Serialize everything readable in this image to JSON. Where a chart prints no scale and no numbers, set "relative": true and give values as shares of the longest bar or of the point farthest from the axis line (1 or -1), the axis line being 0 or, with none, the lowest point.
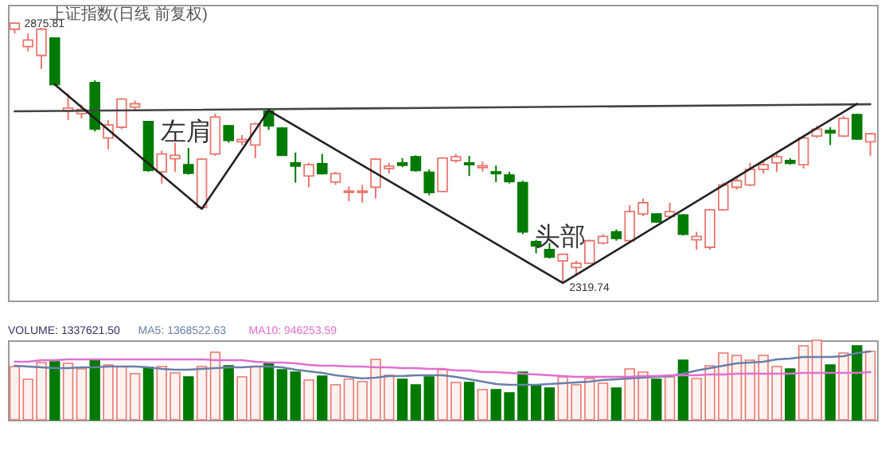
{
  "chart_data": [
    {
      "type": "candlestick",
      "title": "上证指数(日线 前复权)",
      "tick_labels": false,
      "categories": [
        null,
        null,
        null,
        null,
        null,
        null,
        null,
        null,
        null,
        null,
        null,
        null,
        null,
        null,
        null,
        null,
        null,
        null,
        null,
        null,
        null,
        null,
        null,
        null,
        null,
        null,
        null,
        null,
        null,
        null,
        null,
        null,
        null,
        null,
        null,
        null,
        null,
        null,
        null,
        null,
        null,
        null,
        null,
        null,
        null,
        null,
        null,
        null,
        null,
        null,
        null,
        null,
        null,
        null,
        null,
        null,
        null,
        null,
        null,
        null,
        null,
        null,
        null,
        null,
        null
      ],
      "ohlc": [
        [
          2861,
          2875.81,
          2852,
          2874
        ],
        [
          2824,
          2852,
          2814,
          2838
        ],
        [
          2805,
          2864,
          2776,
          2861
        ],
        [
          2842,
          2843,
          2741,
          2743
        ],
        [
          2686,
          2724,
          2667,
          2693
        ],
        [
          2681,
          2700,
          2671,
          2690
        ],
        [
          2747,
          2752,
          2643,
          2648
        ],
        [
          2629,
          2667,
          2605,
          2657
        ],
        [
          2652,
          2714,
          2648,
          2712
        ],
        [
          2695,
          2709,
          2686,
          2702
        ],
        [
          2664,
          2665,
          2557,
          2560
        ],
        [
          2557,
          2602,
          2532,
          2595
        ],
        [
          2585,
          2619,
          2557,
          2592
        ],
        [
          2572,
          2608,
          2551,
          2554
        ],
        [
          2481,
          2586,
          2478,
          2584
        ],
        [
          2595,
          2681,
          2591,
          2674
        ],
        [
          2655,
          2657,
          2619,
          2624
        ],
        [
          2621,
          2635,
          2614,
          2626
        ],
        [
          2614,
          2662,
          2586,
          2659
        ],
        [
          2686,
          2688,
          2646,
          2655
        ],
        [
          2650,
          2652,
          2591,
          2592
        ],
        [
          2576,
          2598,
          2534,
          2569
        ],
        [
          2548,
          2576,
          2524,
          2572
        ],
        [
          2574,
          2595,
          2551,
          2553
        ],
        [
          2535,
          2557,
          2529,
          2553
        ],
        [
          2513,
          2526,
          2494,
          2516
        ],
        [
          2513,
          2529,
          2491,
          2516
        ],
        [
          2524,
          2586,
          2500,
          2584
        ],
        [
          2564,
          2576,
          2553,
          2569
        ],
        [
          2576,
          2586,
          2567,
          2571
        ],
        [
          2589,
          2592,
          2557,
          2560
        ],
        [
          2556,
          2562,
          2507,
          2513
        ],
        [
          2515,
          2588,
          2513,
          2586
        ],
        [
          2581,
          2595,
          2576,
          2589
        ],
        [
          2576,
          2591,
          2548,
          2572
        ],
        [
          2566,
          2579,
          2557,
          2570
        ],
        [
          2557,
          2570,
          2535,
          2553
        ],
        [
          2550,
          2557,
          2532,
          2536
        ],
        [
          2534,
          2538,
          2424,
          2429
        ],
        [
          2408,
          2412,
          2383,
          2399
        ],
        [
          2391,
          2405,
          2372,
          2375
        ],
        [
          2367,
          2383,
          2319.74,
          2381
        ],
        [
          2353,
          2367,
          2339,
          2362
        ],
        [
          2362,
          2412,
          2360,
          2410
        ],
        [
          2405,
          2424,
          2402,
          2419
        ],
        [
          2429,
          2434,
          2410,
          2415
        ],
        [
          2410,
          2486,
          2408,
          2472
        ],
        [
          2467,
          2500,
          2462,
          2491
        ],
        [
          2467,
          2469,
          2448,
          2450
        ],
        [
          2462,
          2491,
          2457,
          2472
        ],
        [
          2465,
          2467,
          2421,
          2424
        ],
        [
          2412,
          2429,
          2391,
          2419
        ],
        [
          2396,
          2478,
          2391,
          2476
        ],
        [
          2476,
          2534,
          2475,
          2529
        ],
        [
          2524,
          2548,
          2519,
          2538
        ],
        [
          2529,
          2576,
          2526,
          2562
        ],
        [
          2562,
          2581,
          2553,
          2572
        ],
        [
          2576,
          2595,
          2557,
          2589
        ],
        [
          2581,
          2586,
          2572,
          2575
        ],
        [
          2572,
          2633,
          2564,
          2629
        ],
        [
          2633,
          2655,
          2629,
          2648
        ],
        [
          2645,
          2652,
          2614,
          2640
        ],
        [
          2633,
          2676,
          2631,
          2671
        ],
        [
          2679,
          2681,
          2625,
          2627
        ],
        [
          2621,
          2640,
          2591,
          2638
        ]
      ],
      "colors": [
        "#e8776f",
        "#e8776f",
        "#e8776f",
        "#007a00",
        "#e8776f",
        "#e8776f",
        "#007a00",
        "#e8776f",
        "#e8776f",
        "#e8776f",
        "#007a00",
        "#e8776f",
        "#e8776f",
        "#007a00",
        "#e8776f",
        "#e8776f",
        "#007a00",
        "#e8776f",
        "#e8776f",
        "#007a00",
        "#007a00",
        "#007a00",
        "#e8776f",
        "#007a00",
        "#e8776f",
        "#e8776f",
        "#e8776f",
        "#e8776f",
        "#e8776f",
        "#007a00",
        "#007a00",
        "#007a00",
        "#e8776f",
        "#e8776f",
        "#007a00",
        "#e8776f",
        "#007a00",
        "#007a00",
        "#007a00",
        "#007a00",
        "#007a00",
        "#e8776f",
        "#e8776f",
        "#e8776f",
        "#e8776f",
        "#007a00",
        "#e8776f",
        "#e8776f",
        "#007a00",
        "#e8776f",
        "#007a00",
        "#e8776f",
        "#e8776f",
        "#e8776f",
        "#e8776f",
        "#e8776f",
        "#e8776f",
        "#e8776f",
        "#007a00",
        "#e8776f",
        "#e8776f",
        "#007a00",
        "#e8776f",
        "#007a00",
        "#e8776f"
      ],
      "series": [
        {
          "type": "line",
          "color": "#444444",
          "values": [
            2686,
            null,
            null,
            null,
            null,
            null,
            null,
            null,
            null,
            null,
            null,
            null,
            null,
            null,
            null,
            null,
            null,
            null,
            null,
            null,
            null,
            null,
            null,
            null,
            null,
            null,
            null,
            null,
            null,
            null,
            null,
            null,
            null,
            null,
            null,
            null,
            null,
            null,
            null,
            null,
            null,
            null,
            null,
            null,
            null,
            null,
            null,
            null,
            null,
            null,
            null,
            null,
            null,
            null,
            null,
            null,
            null,
            null,
            null,
            null,
            null,
            null,
            null,
            null,
            2701
          ]
        },
        {
          "type": "line",
          "color": "#222222",
          "values": [
            null,
            null,
            null,
            2743,
            null,
            null,
            null,
            null,
            null,
            null,
            null,
            null,
            null,
            null,
            2478,
            null,
            null,
            null,
            null,
            2688,
            null,
            null,
            null,
            null,
            null,
            null,
            null,
            null,
            null,
            null,
            null,
            null,
            null,
            null,
            null,
            null,
            null,
            null,
            null,
            null,
            null,
            2320,
            null,
            null,
            null,
            null,
            null,
            null,
            null,
            null,
            null,
            null,
            null,
            null,
            null,
            null,
            null,
            null,
            null,
            null,
            null,
            null,
            null,
            2702,
            null
          ]
        }
      ],
      "annotations": [
        "2875.81",
        "2319.74",
        "左肩",
        "头部"
      ]
    },
    {
      "type": "bar",
      "relative": true,
      "tick_labels": false,
      "categories": [
        null,
        null,
        null,
        null,
        null,
        null,
        null,
        null,
        null,
        null,
        null,
        null,
        null,
        null,
        null,
        null,
        null,
        null,
        null,
        null,
        null,
        null,
        null,
        null,
        null,
        null,
        null,
        null,
        null,
        null,
        null,
        null,
        null,
        null,
        null,
        null,
        null,
        null,
        null,
        null,
        null,
        null,
        null,
        null,
        null,
        null,
        null,
        null,
        null,
        null,
        null,
        null,
        null,
        null,
        null,
        null,
        null,
        null,
        null,
        null,
        null,
        null,
        null,
        null,
        null
      ],
      "series": [
        {
          "type": "bar",
          "colors": [
            "#e8776f",
            "#e8776f",
            "#e8776f",
            "#007a00",
            "#e8776f",
            "#e8776f",
            "#007a00",
            "#e8776f",
            "#e8776f",
            "#e8776f",
            "#007a00",
            "#e8776f",
            "#e8776f",
            "#007a00",
            "#e8776f",
            "#e8776f",
            "#007a00",
            "#e8776f",
            "#e8776f",
            "#007a00",
            "#007a00",
            "#007a00",
            "#e8776f",
            "#007a00",
            "#e8776f",
            "#e8776f",
            "#e8776f",
            "#e8776f",
            "#e8776f",
            "#007a00",
            "#007a00",
            "#007a00",
            "#e8776f",
            "#e8776f",
            "#007a00",
            "#e8776f",
            "#007a00",
            "#007a00",
            "#007a00",
            "#007a00",
            "#007a00",
            "#e8776f",
            "#e8776f",
            "#e8776f",
            "#e8776f",
            "#007a00",
            "#e8776f",
            "#e8776f",
            "#007a00",
            "#e8776f",
            "#007a00",
            "#e8776f",
            "#e8776f",
            "#e8776f",
            "#e8776f",
            "#e8776f",
            "#e8776f",
            "#e8776f",
            "#007a00",
            "#e8776f",
            "#e8776f",
            "#007a00",
            "#e8776f",
            "#007a00",
            "#e8776f"
          ],
          "values": [
            0.67,
            0.51,
            0.72,
            0.73,
            0.71,
            0.64,
            0.75,
            0.69,
            0.67,
            0.58,
            0.66,
            0.67,
            0.59,
            0.54,
            0.67,
            0.85,
            0.68,
            0.54,
            0.67,
            0.71,
            0.63,
            0.6,
            0.5,
            0.55,
            0.44,
            0.51,
            0.48,
            0.76,
            0.56,
            0.51,
            0.44,
            0.54,
            0.63,
            0.47,
            0.47,
            0.38,
            0.38,
            0.34,
            0.6,
            0.44,
            0.4,
            0.54,
            0.44,
            0.52,
            0.46,
            0.4,
            0.64,
            0.6,
            0.51,
            0.54,
            0.75,
            0.52,
            0.68,
            0.84,
            0.81,
            0.75,
            0.81,
            0.67,
            0.64,
            0.93,
            1,
            0.69,
            0.84,
            0.93,
            0.86
          ]
        },
        {
          "type": "line",
          "color": "#6a7fa8",
          "values": [
            0.68,
            0.67,
            0.66,
            0.65,
            0.65,
            0.66,
            0.66,
            0.67,
            0.67,
            0.67,
            0.66,
            0.64,
            0.63,
            0.63,
            0.64,
            0.65,
            0.66,
            0.66,
            0.67,
            0.67,
            0.66,
            0.63,
            0.61,
            0.59,
            0.56,
            0.54,
            0.52,
            0.53,
            0.55,
            0.55,
            0.56,
            0.56,
            0.56,
            0.54,
            0.51,
            0.48,
            0.45,
            0.44,
            0.44,
            0.44,
            0.45,
            0.46,
            0.47,
            0.48,
            0.5,
            0.51,
            0.52,
            0.53,
            0.54,
            0.55,
            0.58,
            0.62,
            0.65,
            0.68,
            0.71,
            0.72,
            0.73,
            0.76,
            0.77,
            0.79,
            0.79,
            0.79,
            0.8,
            0.84,
            0.86
          ]
        },
        {
          "type": "line",
          "color": "#e070d0",
          "values": [
            0.73,
            0.73,
            0.75,
            0.75,
            0.76,
            0.76,
            0.76,
            0.76,
            0.76,
            0.76,
            0.76,
            0.76,
            0.76,
            0.76,
            0.76,
            0.75,
            0.75,
            0.75,
            0.73,
            0.72,
            0.72,
            0.71,
            0.69,
            0.68,
            0.68,
            0.67,
            0.67,
            0.66,
            0.66,
            0.65,
            0.65,
            0.64,
            0.64,
            0.62,
            0.62,
            0.6,
            0.6,
            0.59,
            0.58,
            0.57,
            0.56,
            0.55,
            0.54,
            0.54,
            0.54,
            0.54,
            0.54,
            0.55,
            0.55,
            0.56,
            0.56,
            0.56,
            0.57,
            0.57,
            0.58,
            0.58,
            0.58,
            0.58,
            0.58,
            0.59,
            0.59,
            0.59,
            0.59,
            0.59,
            0.6
          ]
        }
      ],
      "annotations": [
        "VOLUME: 1337621.50",
        "MA5: 1368522.63",
        "MA10: 946253.59"
      ]
    }
  ]
}
